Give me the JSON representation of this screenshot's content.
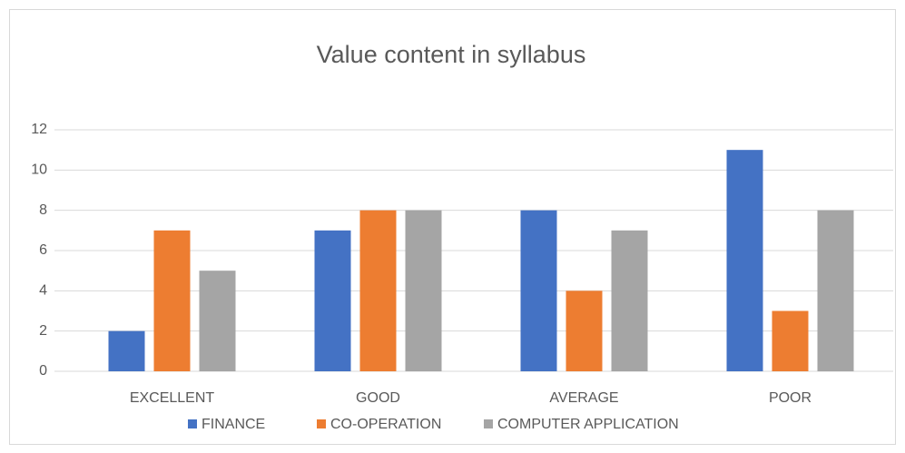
{
  "chart_data": {
    "type": "bar",
    "title": "Value content in syllabus",
    "categories": [
      "EXCELLENT",
      "GOOD",
      "AVERAGE",
      "POOR"
    ],
    "series": [
      {
        "name": "FINANCE",
        "color": "#4472c4",
        "values": [
          2,
          7,
          8,
          11
        ]
      },
      {
        "name": "CO-OPERATION",
        "color": "#ed7d31",
        "values": [
          7,
          8,
          4,
          3
        ]
      },
      {
        "name": "COMPUTER APPLICATION",
        "color": "#a5a5a5",
        "values": [
          5,
          8,
          7,
          8
        ]
      }
    ],
    "ylim": [
      0,
      12
    ],
    "yticks": [
      0,
      2,
      4,
      6,
      8,
      10,
      12
    ],
    "grid": true,
    "legend": "bottom"
  }
}
